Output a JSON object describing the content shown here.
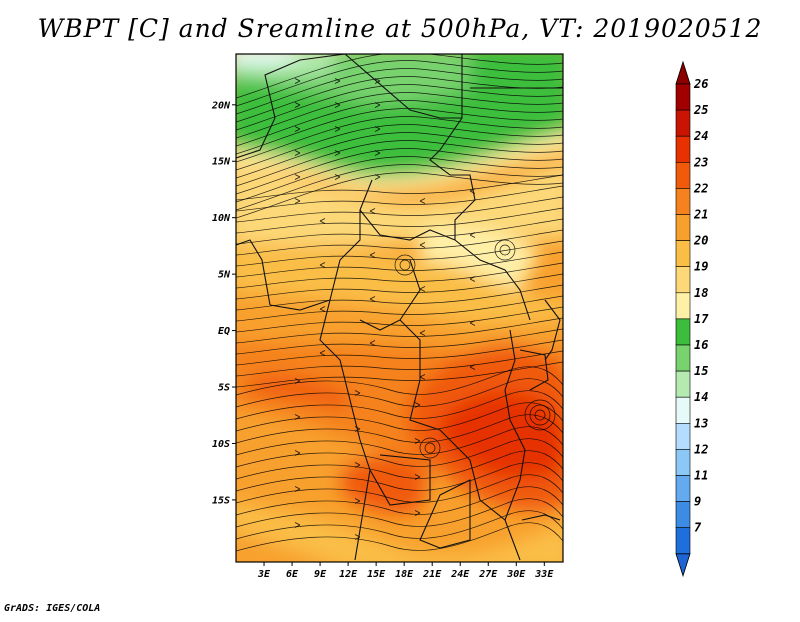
{
  "title": "WBPT [C] and Sreamline at 500hPa, VT: 2019020512",
  "footer": "GrADS: IGES/COLA",
  "map": {
    "lon_range": [
      0,
      35
    ],
    "lat_range": [
      -20.5,
      24.5
    ],
    "lat_ticks": [
      {
        "value": 20,
        "label": "20N"
      },
      {
        "value": 15,
        "label": "15N"
      },
      {
        "value": 10,
        "label": "10N"
      },
      {
        "value": 5,
        "label": "5N"
      },
      {
        "value": 0,
        "label": "EQ"
      },
      {
        "value": -5,
        "label": "5S"
      },
      {
        "value": -10,
        "label": "10S"
      },
      {
        "value": -15,
        "label": "15S"
      }
    ],
    "lon_ticks": [
      {
        "value": 3,
        "label": "3E"
      },
      {
        "value": 6,
        "label": "6E"
      },
      {
        "value": 9,
        "label": "9E"
      },
      {
        "value": 12,
        "label": "12E"
      },
      {
        "value": 15,
        "label": "15E"
      },
      {
        "value": 18,
        "label": "18E"
      },
      {
        "value": 21,
        "label": "21E"
      },
      {
        "value": 24,
        "label": "24E"
      },
      {
        "value": 27,
        "label": "27E"
      },
      {
        "value": 30,
        "label": "30E"
      },
      {
        "value": 33,
        "label": "33E"
      }
    ]
  },
  "colorbar": {
    "levels": [
      {
        "label": "26",
        "color": "#a00000"
      },
      {
        "label": "25",
        "color": "#c81400"
      },
      {
        "label": "24",
        "color": "#e63200"
      },
      {
        "label": "23",
        "color": "#f05a0a"
      },
      {
        "label": "22",
        "color": "#f5821e"
      },
      {
        "label": "21",
        "color": "#f8a02d"
      },
      {
        "label": "20",
        "color": "#fabe46"
      },
      {
        "label": "19",
        "color": "#fcd878"
      },
      {
        "label": "18",
        "color": "#fff0a8"
      },
      {
        "label": "17",
        "color": "#3cbe3c"
      },
      {
        "label": "16",
        "color": "#78d26e"
      },
      {
        "label": "15",
        "color": "#b4eab0"
      },
      {
        "label": "14",
        "color": "#e6fafa"
      },
      {
        "label": "13",
        "color": "#b4dcff"
      },
      {
        "label": "12",
        "color": "#8cc8f5"
      },
      {
        "label": "11",
        "color": "#64aaf0"
      },
      {
        "label": "9",
        "color": "#3c8ce6"
      },
      {
        "label": "7",
        "color": "#1e6edc"
      }
    ],
    "tip_low_color": "#1e64d2",
    "tip_high_color": "#8c0000"
  }
}
